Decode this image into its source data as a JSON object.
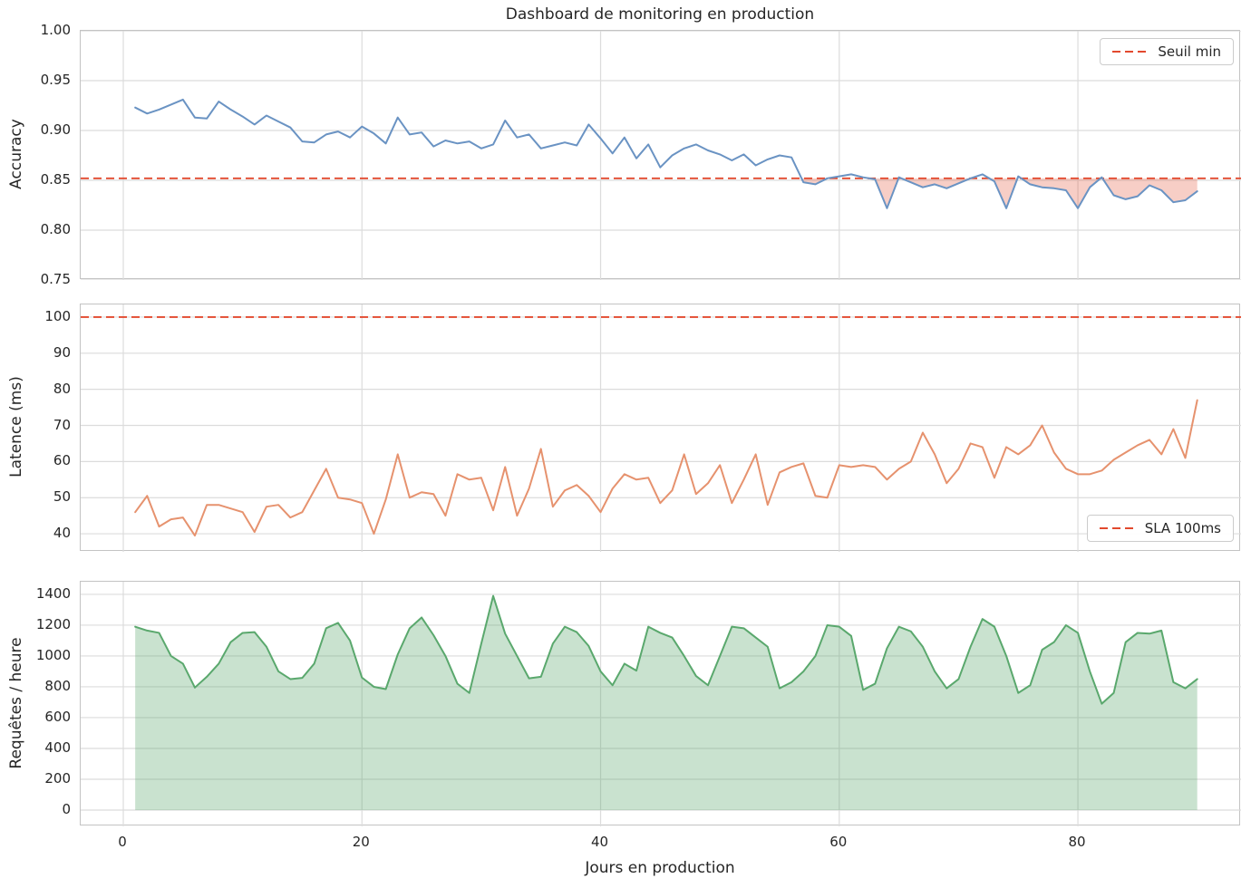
{
  "figure": {
    "title": "Dashboard de monitoring en production",
    "xlabel": "Jours en production",
    "background": "#ffffff",
    "text_color": "#262626",
    "grid_color": "#dcdcdc",
    "spine_color": "#c3c3c3",
    "xticks": [
      {
        "v": 0,
        "label": "0"
      },
      {
        "v": 20,
        "label": "20"
      },
      {
        "v": 40,
        "label": "40"
      },
      {
        "v": 60,
        "label": "60"
      },
      {
        "v": 80,
        "label": "80"
      }
    ]
  },
  "chart_data": [
    {
      "type": "line",
      "id": "accuracy",
      "ylabel": "Accuracy",
      "xlim": [
        -3.57,
        93.67
      ],
      "ylim": [
        0.75,
        1.0
      ],
      "grid": true,
      "legend": {
        "label": "Seuil min",
        "loc": "upper-right"
      },
      "threshold": {
        "value": 0.852,
        "color": "#e2492e"
      },
      "fill": {
        "mode": "below_threshold",
        "color": "rgba(226,73,46,0.27)"
      },
      "yticks": [
        {
          "v": 1.0,
          "label": "1.00"
        },
        {
          "v": 0.95,
          "label": "0.95"
        },
        {
          "v": 0.9,
          "label": "0.90"
        },
        {
          "v": 0.85,
          "label": "0.85"
        },
        {
          "v": 0.8,
          "label": "0.80"
        },
        {
          "v": 0.75,
          "label": "0.75"
        }
      ],
      "x": [
        1,
        2,
        3,
        4,
        5,
        6,
        7,
        8,
        9,
        10,
        11,
        12,
        13,
        14,
        15,
        16,
        17,
        18,
        19,
        20,
        21,
        22,
        23,
        24,
        25,
        26,
        27,
        28,
        29,
        30,
        31,
        32,
        33,
        34,
        35,
        36,
        37,
        38,
        39,
        40,
        41,
        42,
        43,
        44,
        45,
        46,
        47,
        48,
        49,
        50,
        51,
        52,
        53,
        54,
        55,
        56,
        57,
        58,
        59,
        60,
        61,
        62,
        63,
        64,
        65,
        66,
        67,
        68,
        69,
        70,
        71,
        72,
        73,
        74,
        75,
        76,
        77,
        78,
        79,
        80,
        81,
        82,
        83,
        84,
        85,
        86,
        87,
        88,
        89,
        90
      ],
      "series": [
        {
          "name": "Accuracy",
          "color": "#6a93c3",
          "values": [
            0.923,
            0.917,
            0.921,
            0.926,
            0.931,
            0.913,
            0.912,
            0.929,
            0.921,
            0.914,
            0.906,
            0.915,
            0.909,
            0.903,
            0.889,
            0.888,
            0.896,
            0.899,
            0.893,
            0.904,
            0.897,
            0.887,
            0.913,
            0.896,
            0.898,
            0.884,
            0.89,
            0.887,
            0.889,
            0.882,
            0.886,
            0.91,
            0.893,
            0.896,
            0.882,
            0.885,
            0.888,
            0.885,
            0.906,
            0.892,
            0.877,
            0.893,
            0.872,
            0.886,
            0.863,
            0.875,
            0.882,
            0.886,
            0.88,
            0.876,
            0.87,
            0.876,
            0.865,
            0.871,
            0.875,
            0.873,
            0.848,
            0.846,
            0.852,
            0.854,
            0.856,
            0.853,
            0.851,
            0.822,
            0.853,
            0.848,
            0.843,
            0.846,
            0.842,
            0.847,
            0.852,
            0.856,
            0.849,
            0.822,
            0.854,
            0.846,
            0.843,
            0.842,
            0.84,
            0.822,
            0.843,
            0.853,
            0.835,
            0.831,
            0.834,
            0.845,
            0.84,
            0.828,
            0.83,
            0.839
          ]
        }
      ]
    },
    {
      "type": "line",
      "id": "latency",
      "ylabel": "Latence (ms)",
      "xlim": [
        -3.57,
        93.67
      ],
      "ylim": [
        35,
        103.5
      ],
      "grid": true,
      "legend": {
        "label": "SLA 100ms",
        "loc": "lower-right"
      },
      "threshold": {
        "value": 100,
        "color": "#e2492e"
      },
      "fill": null,
      "yticks": [
        {
          "v": 100,
          "label": "100"
        },
        {
          "v": 90,
          "label": "90"
        },
        {
          "v": 80,
          "label": "80"
        },
        {
          "v": 70,
          "label": "70"
        },
        {
          "v": 60,
          "label": "60"
        },
        {
          "v": 50,
          "label": "50"
        },
        {
          "v": 40,
          "label": "40"
        }
      ],
      "x": [
        1,
        2,
        3,
        4,
        5,
        6,
        7,
        8,
        9,
        10,
        11,
        12,
        13,
        14,
        15,
        16,
        17,
        18,
        19,
        20,
        21,
        22,
        23,
        24,
        25,
        26,
        27,
        28,
        29,
        30,
        31,
        32,
        33,
        34,
        35,
        36,
        37,
        38,
        39,
        40,
        41,
        42,
        43,
        44,
        45,
        46,
        47,
        48,
        49,
        50,
        51,
        52,
        53,
        54,
        55,
        56,
        57,
        58,
        59,
        60,
        61,
        62,
        63,
        64,
        65,
        66,
        67,
        68,
        69,
        70,
        71,
        72,
        73,
        74,
        75,
        76,
        77,
        78,
        79,
        80,
        81,
        82,
        83,
        84,
        85,
        86,
        87,
        88,
        89,
        90
      ],
      "series": [
        {
          "name": "Latence (ms)",
          "color": "#e6926e",
          "values": [
            46,
            50.5,
            42,
            44,
            44.5,
            39.5,
            48,
            48,
            47,
            46,
            40.5,
            47.5,
            48,
            44.5,
            46,
            52,
            58,
            50,
            49.5,
            48.5,
            40,
            49.5,
            62,
            50,
            51.5,
            51,
            45,
            56.5,
            55,
            55.5,
            46.5,
            58.5,
            45,
            52.5,
            63.5,
            47.5,
            52,
            53.5,
            50.5,
            46,
            52.5,
            56.5,
            55,
            55.5,
            48.5,
            52,
            62,
            51,
            54,
            59,
            48.5,
            55,
            62,
            48,
            57,
            58.5,
            59.5,
            50.5,
            50,
            59,
            58.5,
            59,
            58.5,
            55,
            58,
            60,
            68,
            62,
            54,
            58,
            65,
            64,
            55.5,
            64,
            62,
            64.5,
            70,
            62.5,
            58,
            56.5,
            56.5,
            57.5,
            60.5,
            62.5,
            64.5,
            66,
            62,
            69,
            61,
            77
          ]
        }
      ]
    },
    {
      "type": "area",
      "id": "requests",
      "ylabel": "Requêtes / heure",
      "xlim": [
        -3.57,
        93.67
      ],
      "ylim": [
        -106,
        1482
      ],
      "grid": true,
      "legend": null,
      "threshold": null,
      "fill": {
        "mode": "to_zero",
        "color": "rgba(90,168,109,0.33)"
      },
      "show_xticks": true,
      "yticks": [
        {
          "v": 1400,
          "label": "1400"
        },
        {
          "v": 1200,
          "label": "1200"
        },
        {
          "v": 1000,
          "label": "1000"
        },
        {
          "v": 800,
          "label": "800"
        },
        {
          "v": 600,
          "label": "600"
        },
        {
          "v": 400,
          "label": "400"
        },
        {
          "v": 200,
          "label": "200"
        },
        {
          "v": 0,
          "label": "0"
        }
      ],
      "x": [
        1,
        2,
        3,
        4,
        5,
        6,
        7,
        8,
        9,
        10,
        11,
        12,
        13,
        14,
        15,
        16,
        17,
        18,
        19,
        20,
        21,
        22,
        23,
        24,
        25,
        26,
        27,
        28,
        29,
        30,
        31,
        32,
        33,
        34,
        35,
        36,
        37,
        38,
        39,
        40,
        41,
        42,
        43,
        44,
        45,
        46,
        47,
        48,
        49,
        50,
        51,
        52,
        53,
        54,
        55,
        56,
        57,
        58,
        59,
        60,
        61,
        62,
        63,
        64,
        65,
        66,
        67,
        68,
        69,
        70,
        71,
        72,
        73,
        74,
        75,
        76,
        77,
        78,
        79,
        80,
        81,
        82,
        83,
        84,
        85,
        86,
        87,
        88,
        89,
        90
      ],
      "series": [
        {
          "name": "Requêtes / heure",
          "color": "#5aa86d",
          "values": [
            1190,
            1165,
            1150,
            1000,
            950,
            795,
            865,
            950,
            1090,
            1150,
            1155,
            1060,
            900,
            850,
            858,
            950,
            1180,
            1215,
            1100,
            860,
            800,
            785,
            1010,
            1180,
            1250,
            1135,
            1000,
            820,
            760,
            1080,
            1390,
            1145,
            1000,
            855,
            865,
            1080,
            1190,
            1155,
            1065,
            900,
            810,
            950,
            905,
            1190,
            1150,
            1120,
            1000,
            870,
            810,
            1000,
            1190,
            1180,
            1120,
            1060,
            790,
            830,
            900,
            1000,
            1200,
            1190,
            1130,
            780,
            820,
            1050,
            1190,
            1160,
            1060,
            900,
            790,
            850,
            1060,
            1240,
            1190,
            1000,
            760,
            810,
            1040,
            1090,
            1200,
            1150,
            900,
            690,
            760,
            1090,
            1150,
            1145,
            1165,
            830,
            790,
            850
          ]
        }
      ]
    }
  ]
}
